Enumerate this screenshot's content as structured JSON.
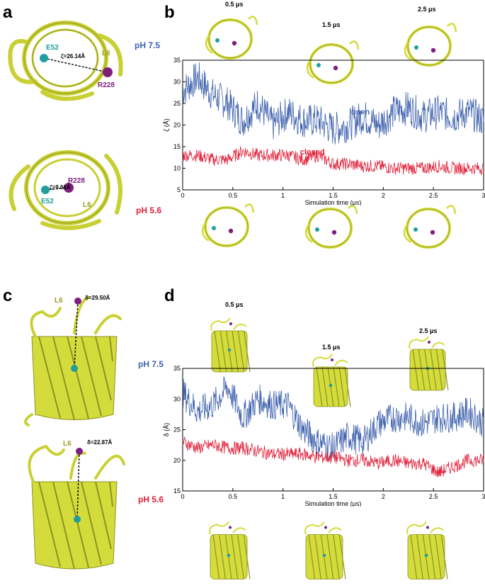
{
  "panels": {
    "a": {
      "letter": "a",
      "top": {
        "res1": "E52",
        "res2": "R228",
        "loop": "L6",
        "dist": "ζ=26.14Å",
        "ph": "pH 7.5"
      },
      "bottom": {
        "res1": "E52",
        "res2": "R228",
        "loop": "L6",
        "dist": "ζ=9.66Å",
        "ph": "pH 5.6"
      }
    },
    "b": {
      "letter": "b",
      "snap_times": [
        "0.5 μs",
        "1.5 μs",
        "2.5 μs"
      ]
    },
    "c": {
      "letter": "c",
      "top": {
        "loop": "L6",
        "dist": "δ=29.50Å",
        "ph": "pH 7.5"
      },
      "bottom": {
        "loop": "L6",
        "dist": "δ=22.87Å",
        "ph": "pH 5.6"
      }
    },
    "d": {
      "letter": "d",
      "snap_times": [
        "0.5 μs",
        "1.5 μs",
        "2.5 μs"
      ]
    }
  },
  "colors": {
    "open": "#3f62ad",
    "closed": "#e0213a",
    "protein": "#d4dc3c",
    "protein_dark": "#8d9321",
    "glu": "#1f9e9b",
    "arg": "#7e1f7c"
  },
  "chart_data": [
    {
      "type": "line",
      "xlabel": "Simulation time (μs)",
      "ylabel": "ζ (Å)",
      "xlim": [
        0,
        3
      ],
      "ylim": [
        5,
        35
      ],
      "xticks": [
        "0",
        "0.5",
        "1",
        "1.5",
        "2",
        "2.5",
        "3"
      ],
      "yticks": [
        "5",
        "10",
        "15",
        "20",
        "25",
        "30",
        "35"
      ],
      "series": [
        {
          "name": "open",
          "x": [
            0,
            0.15,
            0.3,
            0.45,
            0.6,
            0.75,
            0.9,
            1.05,
            1.2,
            1.35,
            1.5,
            1.65,
            1.8,
            1.95,
            2.1,
            2.25,
            2.4,
            2.55,
            2.7,
            2.85,
            3.0
          ],
          "values": [
            28,
            31,
            27,
            25,
            21,
            25,
            20,
            23,
            21,
            21,
            19,
            20,
            22,
            20,
            23,
            24,
            22,
            23,
            22,
            23,
            21
          ]
        },
        {
          "name": "closed",
          "x": [
            0,
            0.15,
            0.3,
            0.45,
            0.6,
            0.75,
            0.9,
            1.05,
            1.2,
            1.35,
            1.5,
            1.65,
            1.8,
            1.95,
            2.1,
            2.25,
            2.4,
            2.55,
            2.7,
            2.85,
            3.0
          ],
          "values": [
            13,
            13,
            12,
            12,
            14,
            13,
            13,
            13,
            12,
            13,
            11,
            11,
            10.5,
            10.5,
            10,
            10,
            10,
            10.5,
            10,
            10,
            10
          ]
        }
      ]
    },
    {
      "type": "line",
      "xlabel": "Simulation time (μs)",
      "ylabel": "δ (Å)",
      "xlim": [
        0,
        3
      ],
      "ylim": [
        15,
        35
      ],
      "xticks": [
        "0",
        "0.5",
        "1",
        "1.5",
        "2",
        "2.5",
        "3"
      ],
      "yticks": [
        "15",
        "20",
        "25",
        "30",
        "35"
      ],
      "series": [
        {
          "name": "",
          "x": [
            0,
            0.15,
            0.3,
            0.45,
            0.6,
            0.75,
            0.9,
            1.05,
            1.2,
            1.35,
            1.5,
            1.65,
            1.8,
            1.95,
            2.1,
            2.25,
            2.4,
            2.55,
            2.7,
            2.85,
            3.0
          ],
          "values": [
            31,
            28,
            29,
            32,
            27,
            30,
            29,
            29,
            25,
            23,
            22,
            24,
            23,
            26,
            27,
            27,
            26,
            27,
            27,
            28,
            26
          ]
        },
        {
          "name": "",
          "x": [
            0,
            0.15,
            0.3,
            0.45,
            0.6,
            0.75,
            0.9,
            1.05,
            1.2,
            1.35,
            1.5,
            1.65,
            1.8,
            1.95,
            2.1,
            2.25,
            2.4,
            2.55,
            2.7,
            2.85,
            3.0
          ],
          "values": [
            23,
            22,
            22.5,
            22,
            22,
            21.5,
            21,
            21,
            21,
            20.5,
            20.5,
            20,
            20,
            19.5,
            20,
            19.5,
            19.5,
            18,
            19,
            20,
            20
          ]
        }
      ]
    }
  ],
  "chart_labels": {
    "open": "open",
    "closed": "closed"
  }
}
